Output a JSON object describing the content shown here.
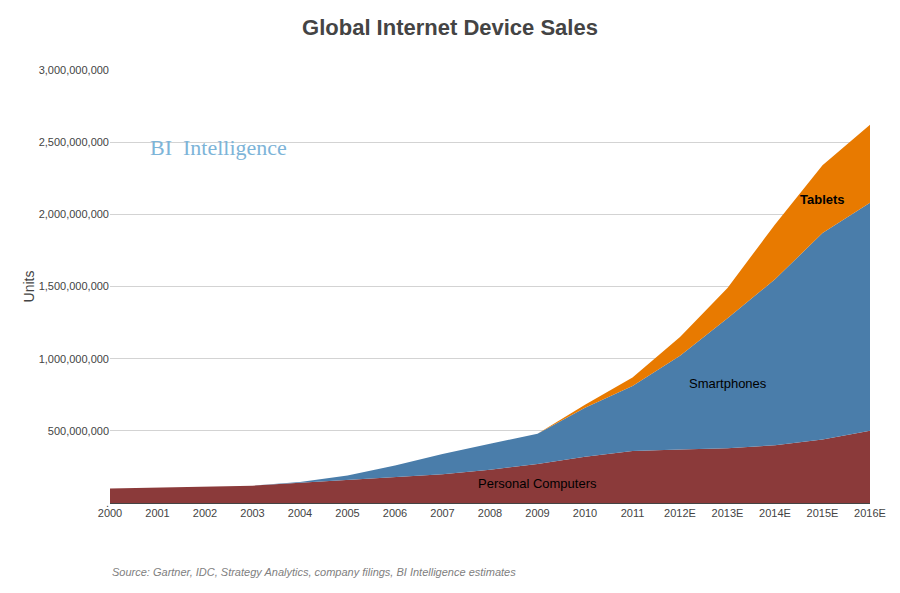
{
  "chart_data": {
    "type": "area",
    "stacked": true,
    "title": "Global Internet Device Sales",
    "ylabel": "Units",
    "annotations": [
      "BI  Intelligence",
      "Source: Gartner, IDC, Strategy Analytics, company filings, BI Intelligence estimates"
    ],
    "categories": [
      "2000",
      "2001",
      "2002",
      "2003",
      "2004",
      "2005",
      "2006",
      "2007",
      "2008",
      "2009",
      "2010",
      "2011",
      "2012E",
      "2013E",
      "2014E",
      "2015E",
      "2016E"
    ],
    "series": [
      {
        "name": "Personal Computers",
        "color": "#8B3A3A",
        "values": [
          100000000,
          105000000,
          110000000,
          120000000,
          140000000,
          160000000,
          180000000,
          200000000,
          230000000,
          270000000,
          320000000,
          360000000,
          370000000,
          380000000,
          400000000,
          440000000,
          500000000
        ]
      },
      {
        "name": "Smartphones",
        "color": "#4A7DAA",
        "values": [
          0,
          0,
          0,
          0,
          5000000,
          30000000,
          80000000,
          140000000,
          180000000,
          210000000,
          340000000,
          450000000,
          650000000,
          900000000,
          1150000000,
          1430000000,
          1580000000
        ]
      },
      {
        "name": "Tablets",
        "color": "#E87A00",
        "values": [
          0,
          0,
          0,
          0,
          0,
          0,
          0,
          0,
          0,
          0,
          20000000,
          60000000,
          130000000,
          210000000,
          380000000,
          470000000,
          540000000
        ]
      }
    ],
    "ylim": [
      0,
      3000000000
    ],
    "yticks": [
      {
        "value": 0,
        "label": "."
      },
      {
        "value": 500000000,
        "label": "500,000,000"
      },
      {
        "value": 1000000000,
        "label": "1,000,000,000"
      },
      {
        "value": 1500000000,
        "label": "1,500,000,000"
      },
      {
        "value": 2000000000,
        "label": "2,000,000,000"
      },
      {
        "value": 2500000000,
        "label": "2,500,000,000"
      },
      {
        "value": 3000000000,
        "label": "3,000,000,000"
      }
    ],
    "grid": true
  }
}
